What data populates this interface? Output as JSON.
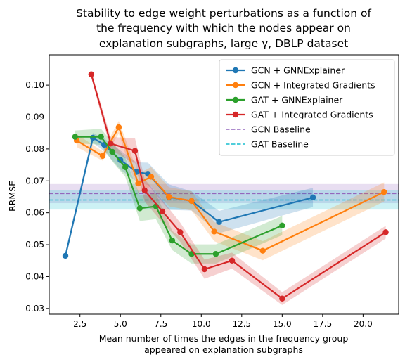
{
  "chart_data": {
    "type": "line",
    "title": [
      "Stability to edge weight perturbations as a function of",
      "the frequency with which the nodes appear on",
      "explanation subgraphs, large γ, DBLP dataset"
    ],
    "xlabel": [
      "Mean number of times the edges in the frequency group",
      "appeared on explanation subgraphs"
    ],
    "ylabel": "RRMSE",
    "xlim": [
      0.6,
      22.2
    ],
    "ylim": [
      0.0282,
      0.1095
    ],
    "xticks": [
      2.5,
      5.0,
      7.5,
      10.0,
      12.5,
      15.0,
      17.5,
      20.0
    ],
    "xtick_labels": [
      "2.5",
      "5.0",
      "7.5",
      "10.0",
      "12.5",
      "15.0",
      "17.5",
      "20.0"
    ],
    "yticks": [
      0.03,
      0.04,
      0.05,
      0.06,
      0.07,
      0.08,
      0.09,
      0.1
    ],
    "ytick_labels": [
      "0.03",
      "0.04",
      "0.05",
      "0.06",
      "0.07",
      "0.08",
      "0.09",
      "0.10"
    ],
    "grid": false,
    "legend_position": "top-right",
    "series": [
      {
        "name": "GCN + GNNExplainer",
        "color": "#1f77b4",
        "x": [
          1.6,
          3.3,
          4.0,
          5.0,
          6.0,
          6.7,
          8.0,
          9.4,
          11.1,
          16.9
        ],
        "y": [
          0.0465,
          0.0835,
          0.0813,
          0.0765,
          0.0728,
          0.0722,
          0.0649,
          0.0637,
          0.0571,
          0.0648
        ],
        "band": [
          0.0012,
          0.0015,
          0.002,
          0.003,
          0.003,
          0.0035,
          0.004,
          0.003,
          0.0035,
          0.003
        ]
      },
      {
        "name": "GCN + Integrated Gradients",
        "color": "#ff7f0e",
        "x": [
          2.3,
          3.9,
          4.9,
          6.1,
          6.9,
          8.0,
          9.4,
          10.8,
          13.8,
          21.3
        ],
        "y": [
          0.0826,
          0.0778,
          0.0868,
          0.0692,
          0.0713,
          0.065,
          0.0637,
          0.0541,
          0.0481,
          0.0665
        ],
        "band": [
          0.002,
          0.0015,
          0.002,
          0.003,
          0.003,
          0.003,
          0.003,
          0.003,
          0.003,
          0.003
        ]
      },
      {
        "name": "GAT + GNNExplainer",
        "color": "#2ca02c",
        "x": [
          2.2,
          3.8,
          4.5,
          5.3,
          6.2,
          7.2,
          8.2,
          9.4,
          10.9,
          15.0
        ],
        "y": [
          0.0838,
          0.0838,
          0.0791,
          0.0743,
          0.0614,
          0.062,
          0.0513,
          0.0471,
          0.0471,
          0.056
        ],
        "band": [
          0.002,
          0.0025,
          0.003,
          0.003,
          0.004,
          0.004,
          0.003,
          0.003,
          0.003,
          0.003
        ]
      },
      {
        "name": "GAT + Integrated Gradients",
        "color": "#d62728",
        "x": [
          3.2,
          4.4,
          5.9,
          6.5,
          7.6,
          8.7,
          10.2,
          11.9,
          15.0,
          21.4
        ],
        "y": [
          0.1034,
          0.0817,
          0.0794,
          0.067,
          0.0604,
          0.0539,
          0.0423,
          0.045,
          0.0331,
          0.0539
        ],
        "band": [
          0.001,
          0.002,
          0.004,
          0.0035,
          0.0035,
          0.003,
          0.003,
          0.0025,
          0.002,
          0.002
        ]
      }
    ],
    "baselines": [
      {
        "name": "GCN Baseline",
        "color": "#9467bd",
        "y": 0.066,
        "band": 0.003,
        "style": "dashed"
      },
      {
        "name": "GAT Baseline",
        "color": "#17becf",
        "y": 0.064,
        "band": 0.003,
        "style": "dashed"
      }
    ]
  }
}
